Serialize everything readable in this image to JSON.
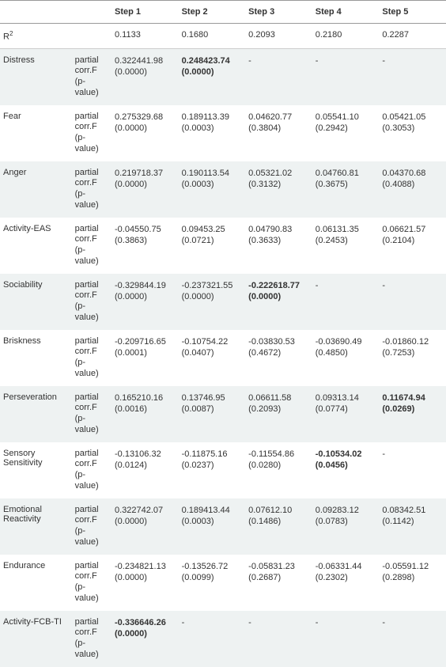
{
  "table": {
    "headers": [
      "",
      "",
      "Step 1",
      "Step 2",
      "Step 3",
      "Step 4",
      "Step 5"
    ],
    "r2_label_html": "R<span class='sup'>2</span>",
    "r2_values": [
      "0.1133",
      "0.1680",
      "0.2093",
      "0.2180",
      "0.2287"
    ],
    "sub_label_lines": [
      "partial",
      "corr.F",
      "(p-",
      "value)"
    ],
    "rows": [
      {
        "name": "Distress",
        "shade": "gray",
        "cells": [
          {
            "l1": "0.322441.98",
            "l2": "(0.0000)",
            "bold": false
          },
          {
            "l1": "0.248423.74",
            "l2": "(0.0000)",
            "bold": true
          },
          {
            "l1": "-",
            "l2": "",
            "bold": false
          },
          {
            "l1": "-",
            "l2": "",
            "bold": false
          },
          {
            "l1": "-",
            "l2": "",
            "bold": false
          }
        ]
      },
      {
        "name": "Fear",
        "shade": "white",
        "cells": [
          {
            "l1": "0.275329.68",
            "l2": "(0.0000)",
            "bold": false
          },
          {
            "l1": "0.189113.39",
            "l2": "(0.0003)",
            "bold": false
          },
          {
            "l1": "0.04620.77",
            "l2": "(0.3804)",
            "bold": false
          },
          {
            "l1": "0.05541.10",
            "l2": "(0.2942)",
            "bold": false
          },
          {
            "l1": "0.05421.05",
            "l2": "(0.3053)",
            "bold": false
          }
        ]
      },
      {
        "name": "Anger",
        "shade": "gray",
        "cells": [
          {
            "l1": "0.219718.37",
            "l2": "(0.0000)",
            "bold": false
          },
          {
            "l1": "0.190113.54",
            "l2": "(0.0003)",
            "bold": false
          },
          {
            "l1": "0.05321.02",
            "l2": "(0.3132)",
            "bold": false
          },
          {
            "l1": "0.04760.81",
            "l2": "(0.3675)",
            "bold": false
          },
          {
            "l1": "0.04370.68",
            "l2": "(0.4088)",
            "bold": false
          }
        ]
      },
      {
        "name": "Activity-EAS",
        "shade": "white",
        "cells": [
          {
            "l1": "-0.04550.75",
            "l2": "(0.3863)",
            "bold": false
          },
          {
            "l1": "0.09453.25",
            "l2": "(0.0721)",
            "bold": false
          },
          {
            "l1": "0.04790.83",
            "l2": "(0.3633)",
            "bold": false
          },
          {
            "l1": "0.06131.35",
            "l2": "(0.2453)",
            "bold": false
          },
          {
            "l1": "0.06621.57",
            "l2": "(0.2104)",
            "bold": false
          }
        ]
      },
      {
        "name": "Sociability",
        "shade": "gray",
        "cells": [
          {
            "l1": "-0.329844.19",
            "l2": "(0.0000)",
            "bold": false
          },
          {
            "l1": "-0.237321.55",
            "l2": "(0.0000)",
            "bold": false
          },
          {
            "l1": "-0.222618.77",
            "l2": "(0.0000)",
            "bold": true
          },
          {
            "l1": "-",
            "l2": "",
            "bold": false
          },
          {
            "l1": "-",
            "l2": "",
            "bold": false
          }
        ]
      },
      {
        "name": "Briskness",
        "shade": "white",
        "cells": [
          {
            "l1": "-0.209716.65",
            "l2": "(0.0001)",
            "bold": false
          },
          {
            "l1": "-0.10754.22",
            "l2": "(0.0407)",
            "bold": false
          },
          {
            "l1": "-0.03830.53",
            "l2": "(0.4672)",
            "bold": false
          },
          {
            "l1": "-0.03690.49",
            "l2": "(0.4850)",
            "bold": false
          },
          {
            "l1": "-0.01860.12",
            "l2": "(0.7253)",
            "bold": false
          }
        ]
      },
      {
        "name": "Perseveration",
        "shade": "gray",
        "cells": [
          {
            "l1": "0.165210.16",
            "l2": "(0.0016)",
            "bold": false
          },
          {
            "l1": "0.13746.95",
            "l2": "(0.0087)",
            "bold": false
          },
          {
            "l1": "0.06611.58",
            "l2": "(0.2093)",
            "bold": false
          },
          {
            "l1": "0.09313.14",
            "l2": "(0.0774)",
            "bold": false
          },
          {
            "l1": "0.11674.94",
            "l2": "(0.0269)",
            "bold": true
          }
        ]
      },
      {
        "name": "Sensory Sensitivity",
        "shade": "white",
        "cells": [
          {
            "l1": "-0.13106.32",
            "l2": "(0.0124)",
            "bold": false
          },
          {
            "l1": "-0.11875.16",
            "l2": "(0.0237)",
            "bold": false
          },
          {
            "l1": "-0.11554.86",
            "l2": "(0.0280)",
            "bold": false
          },
          {
            "l1": "-0.10534.02",
            "l2": "(0.0456)",
            "bold": true
          },
          {
            "l1": "-",
            "l2": "",
            "bold": false
          }
        ]
      },
      {
        "name": "Emotional Reactivity",
        "shade": "gray",
        "cells": [
          {
            "l1": "0.322742.07",
            "l2": "(0.0000)",
            "bold": false
          },
          {
            "l1": "0.189413.44",
            "l2": "(0.0003)",
            "bold": false
          },
          {
            "l1": "0.07612.10",
            "l2": "(0.1486)",
            "bold": false
          },
          {
            "l1": "0.09283.12",
            "l2": "(0.0783)",
            "bold": false
          },
          {
            "l1": "0.08342.51",
            "l2": "(0.1142)",
            "bold": false
          }
        ]
      },
      {
        "name": "Endurance",
        "shade": "white",
        "cells": [
          {
            "l1": "-0.234821.13",
            "l2": "(0.0000)",
            "bold": false
          },
          {
            "l1": "-0.13526.72",
            "l2": "(0.0099)",
            "bold": false
          },
          {
            "l1": "-0.05831.23",
            "l2": "(0.2687)",
            "bold": false
          },
          {
            "l1": "-0.06331.44",
            "l2": "(0.2302)",
            "bold": false
          },
          {
            "l1": "-0.05591.12",
            "l2": "(0.2898)",
            "bold": false
          }
        ]
      },
      {
        "name": "Activity-FCB-TI",
        "shade": "gray",
        "cells": [
          {
            "l1": "-0.336646.26",
            "l2": "(0.0000)",
            "bold": true
          },
          {
            "l1": "-",
            "l2": "",
            "bold": false
          },
          {
            "l1": "-",
            "l2": "",
            "bold": false
          },
          {
            "l1": "-",
            "l2": "",
            "bold": false
          },
          {
            "l1": "-",
            "l2": "",
            "bold": false
          }
        ]
      }
    ]
  }
}
